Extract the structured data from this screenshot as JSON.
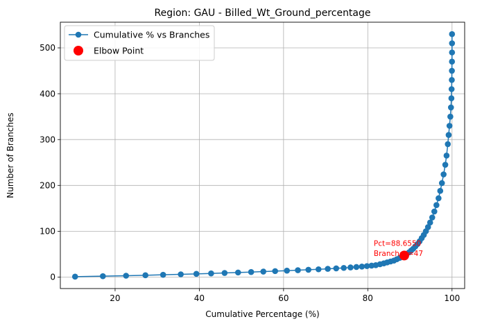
{
  "chart_data": {
    "type": "line",
    "title": "Region: GAU - Billed_Wt_Ground_percentage",
    "xlabel": "Cumulative Percentage (%)",
    "ylabel": "Number of Branches",
    "xlim": [
      7,
      103
    ],
    "ylim": [
      -25,
      556
    ],
    "xticks": [
      20,
      40,
      60,
      80,
      100
    ],
    "yticks": [
      0,
      100,
      200,
      300,
      400,
      500
    ],
    "grid": true,
    "legend_position": "top-left",
    "series": [
      {
        "name": "Cumulative % vs Branches",
        "color": "#1f77b4",
        "marker": "circle",
        "x": [
          10.5,
          17.1,
          22.6,
          27.2,
          31.4,
          35.6,
          39.3,
          42.8,
          46.0,
          49.2,
          52.3,
          55.2,
          58.0,
          60.8,
          63.4,
          65.9,
          68.3,
          70.5,
          72.5,
          74.3,
          75.9,
          77.3,
          78.6,
          79.8,
          80.9,
          81.9,
          82.9,
          83.8,
          84.6,
          85.4,
          86.2,
          86.9,
          87.6,
          88.2,
          88.66,
          89.2,
          89.8,
          90.3,
          90.8,
          91.3,
          91.8,
          92.3,
          92.8,
          93.3,
          93.8,
          94.3,
          94.8,
          95.3,
          95.8,
          96.3,
          96.8,
          97.2,
          97.6,
          98.0,
          98.4,
          98.7,
          99.0,
          99.2,
          99.4,
          99.6,
          99.75,
          99.85,
          99.9,
          99.95,
          99.97,
          99.99,
          100.0,
          100.0,
          100.0
        ],
        "y": [
          1,
          2,
          3,
          4,
          5,
          6,
          7,
          8,
          9,
          10,
          11,
          12,
          13,
          14,
          15,
          16,
          17,
          18,
          19,
          20,
          21,
          22,
          23,
          24,
          25,
          26,
          28,
          30,
          32,
          34,
          36,
          39,
          42,
          45,
          47,
          50,
          54,
          58,
          62,
          67,
          72,
          78,
          85,
          92,
          100,
          109,
          119,
          130,
          143,
          157,
          172,
          188,
          205,
          224,
          245,
          265,
          290,
          310,
          330,
          350,
          370,
          390,
          410,
          430,
          450,
          470,
          490,
          510,
          530
        ]
      }
    ],
    "elbow_point": {
      "label": "Elbow Point",
      "color": "#ff0000",
      "x": 88.655,
      "y": 47,
      "annotation_line1": "Pct=88.6550",
      "annotation_line2": "Branches=47"
    }
  }
}
